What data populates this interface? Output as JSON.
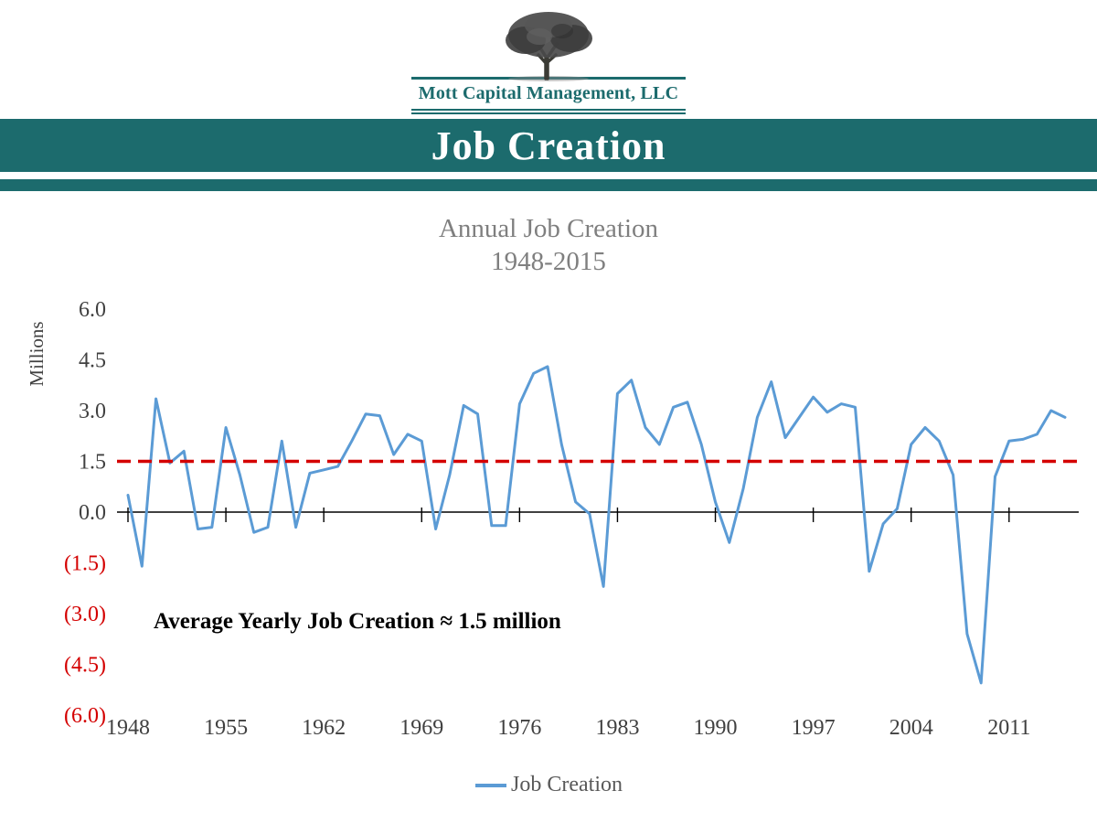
{
  "logo": {
    "company": "Mott Capital Management, LLC"
  },
  "banner": {
    "title": "Job Creation"
  },
  "colors": {
    "teal": "#1c6b6d",
    "line_blue": "#5b9bd5",
    "red": "#d40000",
    "axis_gray": "#404040",
    "title_gray": "#7f7f7f",
    "legend_gray": "#595959"
  },
  "chart_data": {
    "type": "line",
    "title": "Annual Job Creation",
    "subtitle": "1948-2015",
    "ylabel": "Millions",
    "ylim": [
      -6,
      6
    ],
    "grid": false,
    "legend_position": "bottom",
    "x_tick_years": [
      1948,
      1955,
      1962,
      1969,
      1976,
      1983,
      1990,
      1997,
      2004,
      2011
    ],
    "y_ticks": [
      {
        "value": 6.0,
        "label": "6.0",
        "negative": false
      },
      {
        "value": 4.5,
        "label": "4.5",
        "negative": false
      },
      {
        "value": 3.0,
        "label": "3.0",
        "negative": false
      },
      {
        "value": 1.5,
        "label": "1.5",
        "negative": false
      },
      {
        "value": 0.0,
        "label": "0.0",
        "negative": false
      },
      {
        "value": -1.5,
        "label": "(1.5)",
        "negative": true
      },
      {
        "value": -3.0,
        "label": "(3.0)",
        "negative": true
      },
      {
        "value": -4.5,
        "label": "(4.5)",
        "negative": true
      },
      {
        "value": -6.0,
        "label": "(6.0)",
        "negative": true
      }
    ],
    "average_line": {
      "value": 1.5,
      "style": "dashed",
      "color": "#d40000"
    },
    "annotation": "Average Yearly Job Creation ≈ 1.5 million",
    "legend": [
      {
        "name": "Job Creation",
        "color": "#5b9bd5"
      }
    ],
    "series": [
      {
        "name": "Job Creation",
        "x": [
          1948,
          1949,
          1950,
          1951,
          1952,
          1953,
          1954,
          1955,
          1956,
          1957,
          1958,
          1959,
          1960,
          1961,
          1962,
          1963,
          1964,
          1965,
          1966,
          1967,
          1968,
          1969,
          1970,
          1971,
          1972,
          1973,
          1974,
          1975,
          1976,
          1977,
          1978,
          1979,
          1980,
          1981,
          1982,
          1983,
          1984,
          1985,
          1986,
          1987,
          1988,
          1989,
          1990,
          1991,
          1992,
          1993,
          1994,
          1995,
          1996,
          1997,
          1998,
          1999,
          2000,
          2001,
          2002,
          2003,
          2004,
          2005,
          2006,
          2007,
          2008,
          2009,
          2010,
          2011,
          2012,
          2013,
          2014,
          2015
        ],
        "values": [
          0.5,
          -1.6,
          3.35,
          1.45,
          1.8,
          -0.5,
          -0.45,
          2.5,
          1.1,
          -0.6,
          -0.45,
          2.1,
          -0.45,
          1.15,
          1.25,
          1.35,
          2.1,
          2.9,
          2.85,
          1.7,
          2.3,
          2.1,
          -0.5,
          1.1,
          3.15,
          2.9,
          -0.4,
          -0.4,
          3.2,
          4.1,
          4.3,
          2.0,
          0.3,
          -0.05,
          -2.2,
          3.5,
          3.9,
          2.5,
          2.0,
          3.1,
          3.25,
          2.0,
          0.3,
          -0.9,
          0.7,
          2.8,
          3.85,
          2.2,
          2.8,
          3.4,
          2.95,
          3.2,
          3.1,
          -1.75,
          -0.35,
          0.1,
          2.0,
          2.5,
          2.1,
          1.1,
          -3.6,
          -5.05,
          1.05,
          2.1,
          2.15,
          2.3,
          3.0,
          2.8
        ]
      }
    ]
  }
}
